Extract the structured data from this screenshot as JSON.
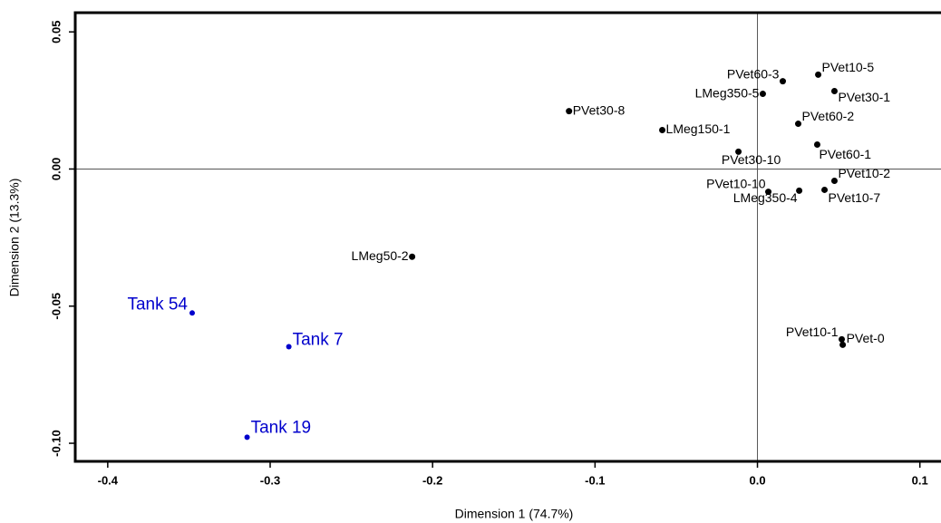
{
  "chart_data": {
    "type": "scatter",
    "x_label": "Dimension 1 (74.7%)",
    "y_label": "Dimension 2 (13.3%)",
    "xlim": [
      -0.42,
      0.113
    ],
    "ylim": [
      -0.1066,
      0.057
    ],
    "xticks": [
      -0.4,
      -0.3,
      -0.2,
      -0.1,
      {
        "value": 0,
        "label": "0.0"
      },
      0.1
    ],
    "yticks": [
      {
        "value": -0.1,
        "label": "-0.10"
      },
      -0.05,
      {
        "value": 0,
        "label": "0.00"
      },
      0.05
    ],
    "reference_lines": true,
    "series": [
      {
        "color": "#000000",
        "labels": [
          "PVet60-3",
          "PVet10-5",
          "LMeg350-5",
          "PVet30-1",
          "PVet30-8",
          "PVet60-2",
          "LMeg150-1",
          "PVet60-1",
          "PVet30-10",
          "PVet10-2",
          "PVet10-10",
          "LMeg350-4",
          "PVet10-7",
          "LMeg50-2",
          "PVet10-1",
          "PVet-0"
        ],
        "x": [
          0.0156,
          0.0374,
          0.0033,
          0.0474,
          -0.116,
          0.0251,
          -0.0586,
          0.0368,
          -0.0117,
          0.0474,
          0.0067,
          0.0257,
          0.0413,
          -0.2126,
          0.0519,
          0.0525
        ],
        "values": [
          0.032,
          0.0344,
          0.0274,
          0.0284,
          0.0211,
          0.0165,
          0.0142,
          0.0089,
          0.0063,
          -0.0043,
          -0.0083,
          -0.0079,
          -0.0076,
          -0.032,
          -0.0621,
          -0.0641
        ]
      },
      {
        "color": "#0000cc",
        "labels": [
          "Tank 54",
          "Tank 7",
          "Tank 19"
        ],
        "x": [
          -0.348,
          -0.2885,
          -0.3142
        ],
        "values": [
          -0.0525,
          -0.0648,
          -0.0978
        ]
      }
    ]
  }
}
